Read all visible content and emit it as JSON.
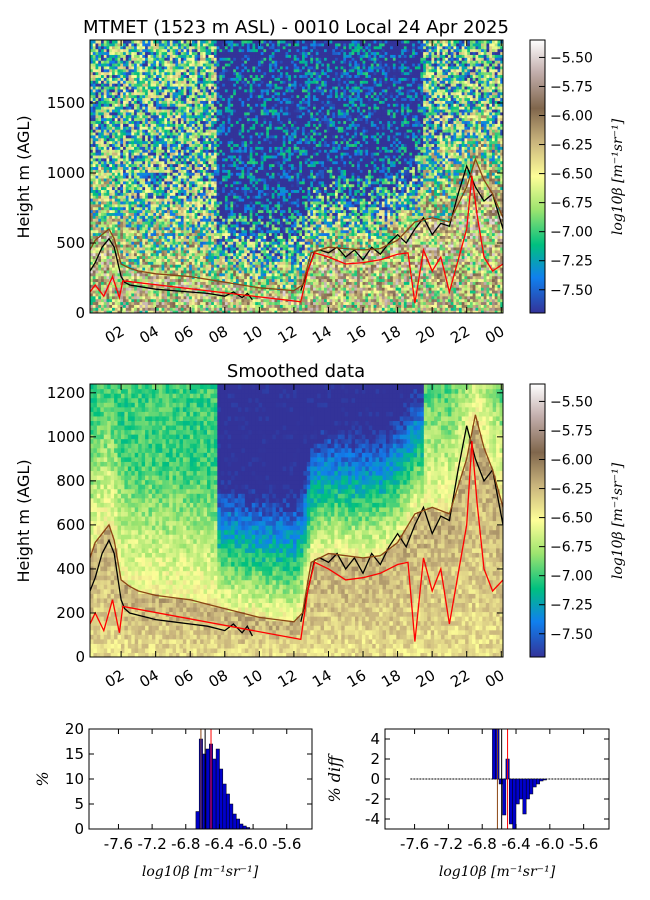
{
  "chart_data": [
    {
      "type": "heatmap",
      "title": "MTMET (1523 m ASL) - 0010 Local 24 Apr 2025",
      "xlabel": "",
      "ylabel": "Height m (AGL)",
      "x_tick_labels": [
        "02",
        "04",
        "06",
        "08",
        "10",
        "12",
        "14",
        "16",
        "18",
        "20",
        "22",
        "00"
      ],
      "x_range_hours": [
        0.17,
        24.17
      ],
      "xlim": [
        0.2,
        24.1
      ],
      "y_ticks": [
        0,
        500,
        1000,
        1500
      ],
      "ylim": [
        0,
        1950
      ],
      "colorbar": {
        "label": "log10β [m⁻¹sr⁻¹]",
        "ticks": [
          -5.5,
          -5.75,
          -6.0,
          -6.25,
          -6.5,
          -6.75,
          -7.0,
          -7.25,
          -7.5
        ],
        "tick_labels": [
          "−5.50",
          "−5.75",
          "−6.00",
          "−6.25",
          "−6.50",
          "−6.75",
          "−7.00",
          "−7.25",
          "−7.50"
        ],
        "range": [
          -7.7,
          -5.35
        ]
      },
      "series": [
        {
          "color": "#000000",
          "x": [
            0.2,
            0.5,
            0.9,
            1.3,
            1.6,
            2.0,
            2.2,
            2.5,
            3.0,
            3.5,
            4.0,
            5.0,
            6.0,
            7.0,
            8.0,
            8.5,
            9.0,
            9.3,
            9.6
          ],
          "y": [
            300,
            360,
            470,
            530,
            470,
            260,
            220,
            200,
            190,
            180,
            170,
            160,
            150,
            140,
            120,
            150,
            110,
            140,
            95
          ]
        },
        {
          "color": "#000000",
          "x": [
            12.4,
            12.8,
            13.2,
            13.5,
            14.0,
            14.5,
            15.0,
            15.5,
            16.0,
            16.5,
            17.0,
            17.5,
            18.0,
            18.5,
            19.0,
            19.5,
            20.0,
            20.5,
            21.0,
            21.5,
            22.0,
            22.5,
            23.0,
            23.5,
            24.1
          ],
          "y": [
            160,
            300,
            440,
            450,
            430,
            470,
            400,
            450,
            380,
            470,
            420,
            500,
            560,
            500,
            600,
            680,
            560,
            640,
            620,
            850,
            1050,
            900,
            800,
            850,
            600
          ]
        },
        {
          "color": "#8b4513",
          "x": [
            0.2,
            0.5,
            0.9,
            1.3,
            1.6,
            2.0,
            2.5,
            3.0,
            4.0,
            5.0,
            6.0,
            7.0,
            8.0,
            9.0,
            10.0,
            11.0,
            12.0,
            12.5,
            13.0,
            14.0,
            15.0,
            16.0,
            17.0,
            18.0,
            19.0,
            20.0,
            21.0,
            22.0,
            22.5,
            23.0,
            23.5,
            24.1
          ],
          "y": [
            450,
            520,
            560,
            600,
            530,
            350,
            320,
            300,
            280,
            270,
            260,
            240,
            220,
            200,
            180,
            170,
            160,
            200,
            430,
            470,
            460,
            450,
            460,
            520,
            650,
            680,
            650,
            900,
            1100,
            950,
            850,
            680
          ]
        },
        {
          "color": "#ff0000",
          "x": [
            0.2,
            0.5,
            1.0,
            1.5,
            1.9,
            2.1,
            12.4,
            12.8,
            13.2,
            14.0,
            15.0,
            16.0,
            17.0,
            18.0,
            18.6,
            19.0,
            19.5,
            20.0,
            20.5,
            21.0,
            22.0,
            22.3,
            22.6,
            23.0,
            23.5,
            24.1
          ],
          "y": [
            150,
            200,
            120,
            260,
            110,
            230,
            80,
            300,
            430,
            400,
            350,
            360,
            380,
            420,
            430,
            70,
            450,
            300,
            400,
            150,
            600,
            980,
            700,
            400,
            300,
            350
          ]
        }
      ]
    },
    {
      "type": "heatmap",
      "title": "Smoothed data",
      "xlabel": "",
      "ylabel": "Height m (AGL)",
      "x_tick_labels": [
        "02",
        "04",
        "06",
        "08",
        "10",
        "12",
        "14",
        "16",
        "18",
        "20",
        "22",
        "00"
      ],
      "y_ticks": [
        0,
        200,
        400,
        600,
        800,
        1000,
        1200
      ],
      "ylim": [
        0,
        1240
      ],
      "colorbar": {
        "label": "log10β [m⁻¹sr⁻¹]",
        "ticks": [
          -5.5,
          -5.75,
          -6.0,
          -6.25,
          -6.5,
          -6.75,
          -7.0,
          -7.25,
          -7.5
        ],
        "tick_labels": [
          "−5.50",
          "−5.75",
          "−6.00",
          "−6.25",
          "−6.50",
          "−6.75",
          "−7.00",
          "−7.25",
          "−7.50"
        ],
        "range": [
          -7.7,
          -5.35
        ]
      }
    },
    {
      "type": "bar",
      "title": "",
      "xlabel": "log10β [m⁻¹sr⁻¹]",
      "ylabel": "%",
      "x_tick_labels": [
        "-7.6",
        "-7.2",
        "-6.8",
        "-6.4",
        "-6.0",
        "-5.6"
      ],
      "x_ticks": [
        -7.6,
        -7.2,
        -6.8,
        -6.4,
        -6.0,
        -5.6
      ],
      "xlim": [
        -7.95,
        -5.3
      ],
      "y_ticks": [
        0,
        5,
        10,
        15,
        20
      ],
      "ylim": [
        0,
        20
      ],
      "bins": [
        -6.68,
        -6.64,
        -6.6,
        -6.56,
        -6.52,
        -6.48,
        -6.44,
        -6.4,
        -6.36,
        -6.32,
        -6.28,
        -6.24,
        -6.2,
        -6.16,
        -6.12,
        -6.08
      ],
      "values": [
        3.5,
        18,
        15,
        16,
        17,
        14,
        16,
        12,
        9,
        7,
        5,
        3,
        2,
        1,
        0.6,
        0.3
      ],
      "reference_lines": [
        {
          "x": -6.57,
          "color": "#000000"
        },
        {
          "x": -6.62,
          "color": "#8b4513"
        },
        {
          "x": -6.5,
          "color": "#ff0000"
        }
      ]
    },
    {
      "type": "bar",
      "title": "",
      "xlabel": "log10β [m⁻¹sr⁻¹]",
      "ylabel": "% diff",
      "x_tick_labels": [
        "-7.6",
        "-7.2",
        "-6.8",
        "-6.4",
        "-6.0",
        "-5.6"
      ],
      "x_ticks": [
        -7.6,
        -7.2,
        -6.8,
        -6.4,
        -6.0,
        -5.6
      ],
      "xlim": [
        -7.95,
        -5.3
      ],
      "y_ticks": [
        -4,
        -2,
        0,
        2,
        4
      ],
      "ylim": [
        -5,
        5
      ],
      "bins": [
        -6.68,
        -6.64,
        -6.6,
        -6.56,
        -6.52,
        -6.48,
        -6.44,
        -6.4,
        -6.36,
        -6.32,
        -6.28,
        -6.24,
        -6.2,
        -6.16,
        -6.12,
        -6.08
      ],
      "values": [
        5,
        5,
        -0.5,
        -3.6,
        2,
        -4.5,
        -5,
        -2.5,
        -2,
        -3.5,
        -2,
        -1.5,
        -0.8,
        -0.5,
        -0.2,
        -0.1
      ],
      "zero_line": [
        -7.65,
        -5.35
      ],
      "reference_lines": [
        {
          "x": -6.57,
          "color": "#000000"
        },
        {
          "x": -6.62,
          "color": "#8b4513"
        },
        {
          "x": -6.5,
          "color": "#ff0000"
        }
      ]
    }
  ]
}
